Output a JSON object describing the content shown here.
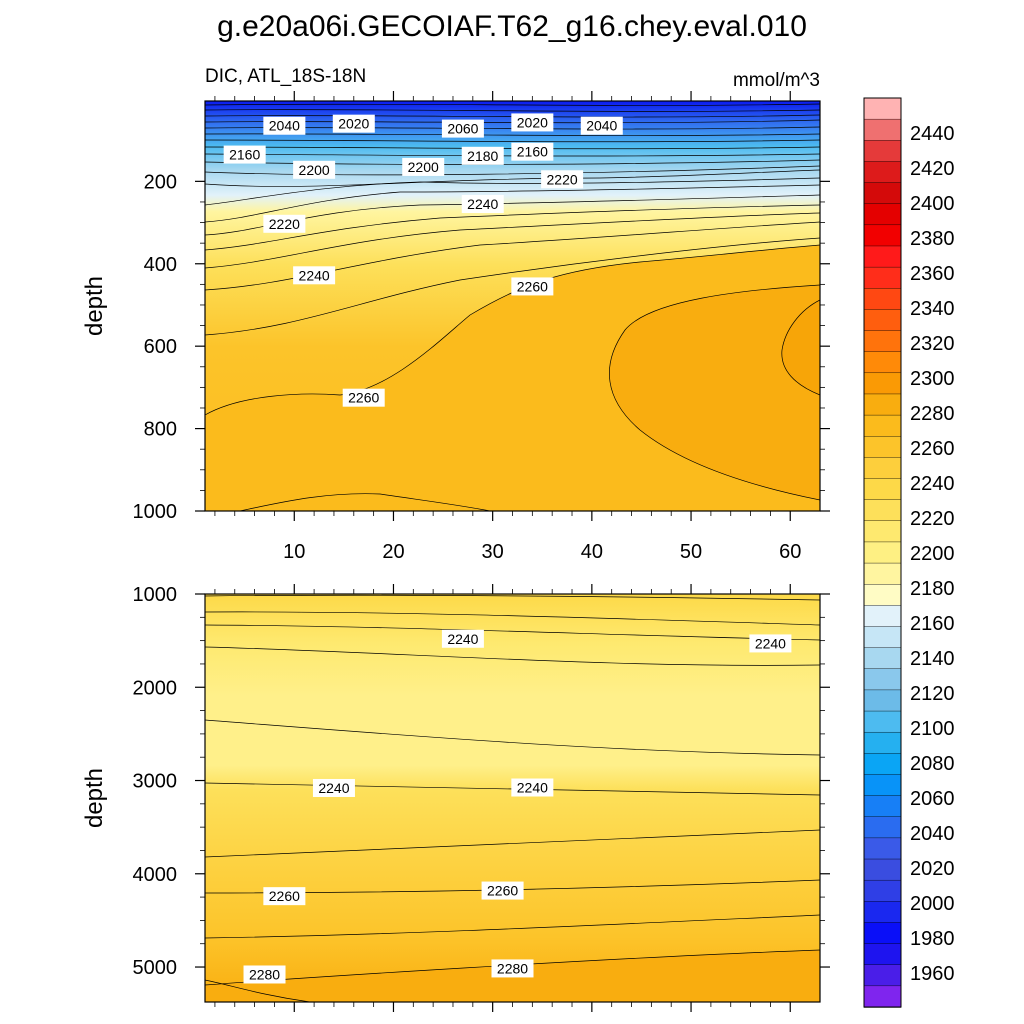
{
  "figure": {
    "title": "g.e20a06i.GECOIAF.T62_g16.chey.eval.010",
    "subtitle_left": "DIC, ATL_18S-18N",
    "subtitle_right": "mmol/m^3"
  },
  "colors": {
    "deep_blue": "#0a1af0",
    "mid_blue": "#2f6bf0",
    "light_blue": "#a8d8f0",
    "pale_yellow": "#fff5a0",
    "yellow": "#fde05a",
    "gold": "#fcc42a",
    "orange": "#f9ad0f"
  },
  "chart_data": [
    {
      "type": "contour",
      "panel": "top",
      "xlabel": "",
      "ylabel": "depth",
      "xlim": [
        1,
        63
      ],
      "ylim": [
        1000,
        5
      ],
      "x_ticks": [
        10,
        20,
        30,
        40,
        50,
        60
      ],
      "y_ticks": [
        200,
        400,
        600,
        800,
        1000
      ],
      "contour_labels": [
        {
          "text": "2040",
          "x": 9,
          "y": 65
        },
        {
          "text": "2020",
          "x": 16,
          "y": 60
        },
        {
          "text": "2060",
          "x": 27,
          "y": 72
        },
        {
          "text": "2020",
          "x": 34,
          "y": 57
        },
        {
          "text": "2040",
          "x": 41,
          "y": 65
        },
        {
          "text": "2160",
          "x": 5,
          "y": 135
        },
        {
          "text": "2180",
          "x": 29,
          "y": 138
        },
        {
          "text": "2160",
          "x": 34,
          "y": 128
        },
        {
          "text": "2200",
          "x": 12,
          "y": 172
        },
        {
          "text": "2200",
          "x": 23,
          "y": 165
        },
        {
          "text": "2220",
          "x": 37,
          "y": 195
        },
        {
          "text": "2240",
          "x": 29,
          "y": 255
        },
        {
          "text": "2220",
          "x": 9,
          "y": 303
        },
        {
          "text": "2240",
          "x": 12,
          "y": 428
        },
        {
          "text": "2260",
          "x": 34,
          "y": 455
        },
        {
          "text": "2260",
          "x": 17,
          "y": 725
        }
      ]
    },
    {
      "type": "contour",
      "panel": "bottom",
      "xlabel": "",
      "ylabel": "depth",
      "xlim": [
        1,
        63
      ],
      "ylim": [
        5375,
        1000
      ],
      "y_ticks": [
        1000,
        2000,
        3000,
        4000,
        5000
      ],
      "contour_labels": [
        {
          "text": "2240",
          "x": 27,
          "y": 1480
        },
        {
          "text": "2240",
          "x": 58,
          "y": 1530
        },
        {
          "text": "2240",
          "x": 14,
          "y": 3080
        },
        {
          "text": "2240",
          "x": 34,
          "y": 3075
        },
        {
          "text": "2260",
          "x": 9,
          "y": 4240
        },
        {
          "text": "2260",
          "x": 31,
          "y": 4180
        },
        {
          "text": "2280",
          "x": 7,
          "y": 5080
        },
        {
          "text": "2280",
          "x": 32,
          "y": 5015
        }
      ]
    },
    {
      "type": "colorbar",
      "levels": [
        1960,
        1980,
        2000,
        2020,
        2040,
        2060,
        2080,
        2100,
        2120,
        2140,
        2160,
        2180,
        2200,
        2220,
        2240,
        2260,
        2280,
        2300,
        2320,
        2340,
        2360,
        2380,
        2400,
        2420,
        2440
      ],
      "tick_labels": [
        "1960",
        "1980",
        "2000",
        "2020",
        "2040",
        "2060",
        "2080",
        "2100",
        "2120",
        "2140",
        "2160",
        "2180",
        "2200",
        "2220",
        "2240",
        "2260",
        "2280",
        "2300",
        "2320",
        "2340",
        "2360",
        "2380",
        "2400",
        "2420",
        "2440"
      ],
      "colors": [
        "#ffb3b3",
        "#ef7070",
        "#e53a3a",
        "#dd1b1b",
        "#d40a0a",
        "#e40000",
        "#f20000",
        "#ff1a1a",
        "#ff2d1a",
        "#ff4812",
        "#ff5e0e",
        "#ff730c",
        "#ff8a08",
        "#fa9a05",
        "#f9ad0f",
        "#fbbb1c",
        "#fcc42a",
        "#fdcf3c",
        "#fdd948",
        "#fde05a",
        "#fee96f",
        "#fef083",
        "#fff5a0",
        "#fffcc5",
        "#e2f2fa",
        "#c6e6f6",
        "#a8d8f0",
        "#8ac8ec",
        "#6cbbe8",
        "#4dbbf0",
        "#25b0f0",
        "#0aa5f5",
        "#0893f8",
        "#177ff6",
        "#2a6cf0",
        "#3a5ae8",
        "#3a4de0",
        "#2f3fe6",
        "#1a28f0",
        "#0a0ff8",
        "#1e14ef",
        "#4a1ee8",
        "#7f25ee"
      ]
    }
  ]
}
